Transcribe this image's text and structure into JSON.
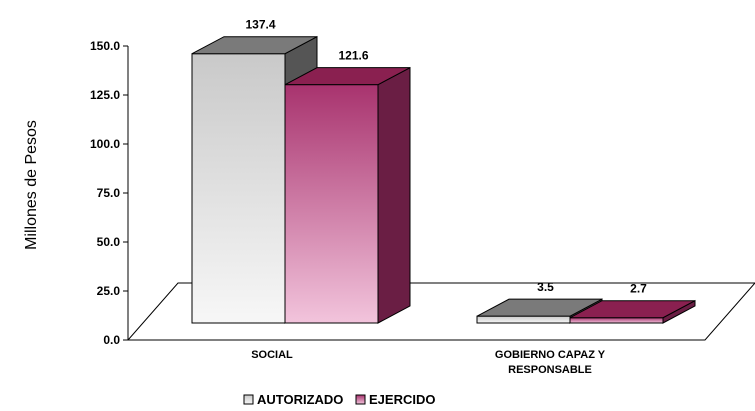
{
  "chart_data": {
    "type": "bar",
    "ylabel": "Millones de Pesos",
    "xlabel": "",
    "ylim": [
      0,
      150
    ],
    "yticks": [
      "0.0",
      "25.0",
      "50.0",
      "75.0",
      "100.0",
      "125.0",
      "150.0"
    ],
    "categories": [
      [
        "SOCIAL"
      ],
      [
        "GOBIERNO CAPAZ Y",
        "RESPONSABLE"
      ]
    ],
    "series": [
      {
        "name": "AUTORIZADO",
        "values": [
          137.4,
          3.5
        ],
        "labels": [
          "137.4",
          "3.5"
        ],
        "colors": {
          "front_top": "#c9c9c9",
          "front_bottom": "#f7f7f7",
          "side": "#555555",
          "top": "#7a7a7a"
        }
      },
      {
        "name": "EJERCIDO",
        "values": [
          121.6,
          2.7
        ],
        "labels": [
          "121.6",
          "2.7"
        ],
        "colors": {
          "front_top": "#a8336e",
          "front_bottom": "#f2c4dc",
          "side": "#6a1e44",
          "top": "#8a2050"
        }
      }
    ],
    "legend_position": "bottom",
    "grid": false,
    "style": "3d-bar"
  }
}
